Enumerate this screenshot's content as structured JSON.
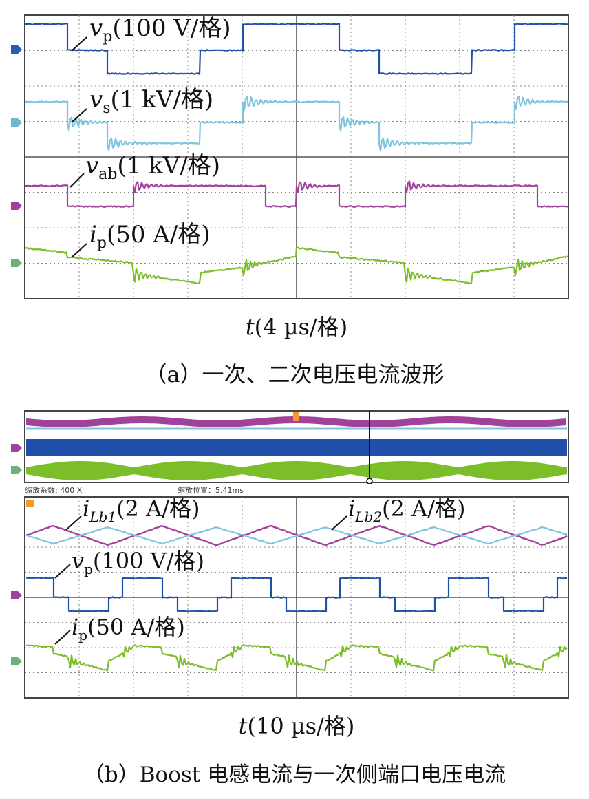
{
  "chart_data": [
    {
      "type": "line",
      "panel": "a",
      "caption": "（a）一次、二次电压电流波形",
      "xlabel": {
        "var": "t",
        "unit": "(4 µs/格)"
      },
      "x_divisions": 10,
      "y_divisions": 8,
      "series": [
        {
          "name": "v",
          "sub": "p",
          "scale": "(100 V/格)",
          "color": "#1f4fa8",
          "levels": [
            2.0,
            1.0,
            0.0
          ],
          "ringing": 0
        },
        {
          "name": "v",
          "sub": "s",
          "scale": "(1 kV/格)",
          "color": "#7fc3df",
          "levels": [
            2.0,
            1.0,
            0.0
          ],
          "ringing": 0.5
        },
        {
          "name": "v",
          "sub": "ab",
          "scale": "(1 kV/格)",
          "color": "#a0419a",
          "levels": [
            1.0,
            0.0
          ],
          "ringing": 0.4
        },
        {
          "name": "i",
          "sub": "p",
          "scale": "(50 A/格)",
          "color": "#7cbd2a",
          "levels": [
            0.5,
            0.0,
            -0.5
          ],
          "ringing": 0.5
        }
      ]
    },
    {
      "type": "line",
      "panel": "b",
      "caption": "（b）Boost 电感电流与一次侧端口电压电流",
      "xlabel": {
        "var": "t",
        "unit": "(10 µs/格)"
      },
      "overview": {
        "zoom_factor_text": "缩放系数: 400 X",
        "zoom_pos_text": "缩放位置：5.41ms"
      },
      "x_divisions": 10,
      "y_divisions": 8,
      "series": [
        {
          "name": "i",
          "sub": "Lb1",
          "scale": "(2 A/格)",
          "color": "#a0419a"
        },
        {
          "name": "i",
          "sub": "Lb2",
          "scale": "(2 A/格)",
          "color": "#7fc3df"
        },
        {
          "name": "v",
          "sub": "p",
          "scale": "(100 V/格)",
          "color": "#1f4fa8"
        },
        {
          "name": "i",
          "sub": "p",
          "scale": "(50 A/格)",
          "color": "#7cbd2a"
        }
      ]
    }
  ]
}
